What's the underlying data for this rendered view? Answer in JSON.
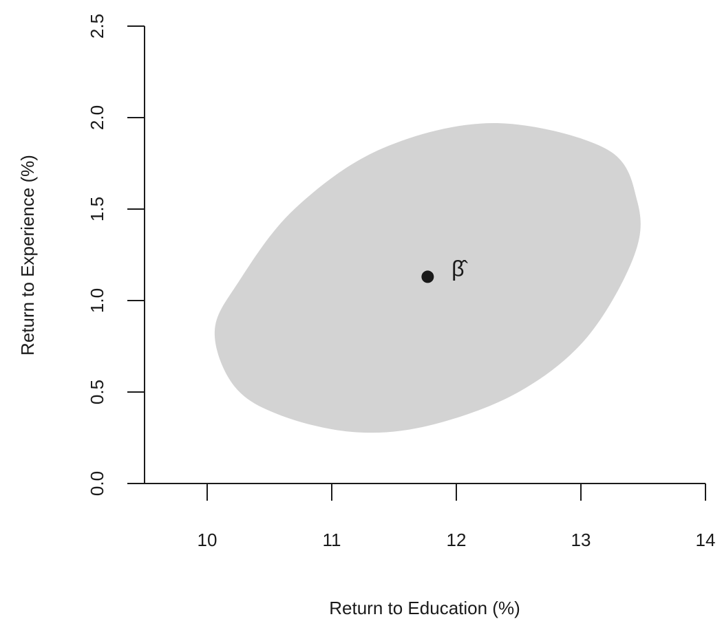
{
  "chart_data": {
    "type": "scatter",
    "title": "",
    "xlabel": "Return to Education (%)",
    "ylabel": "Return to Experience (%)",
    "xlim": [
      9.5,
      14
    ],
    "ylim": [
      0,
      2.5
    ],
    "x_ticks": [
      10,
      11,
      12,
      13,
      14
    ],
    "x_tick_labels": [
      "10",
      "11",
      "12",
      "13",
      "14"
    ],
    "y_ticks": [
      0,
      0.5,
      1,
      1.5,
      2,
      2.5
    ],
    "y_tick_labels": [
      "0.0",
      "0.5",
      "1.0",
      "1.5",
      "2.0",
      "2.5"
    ],
    "grid": false,
    "point": {
      "x": 11.77,
      "y": 1.13,
      "label": "β̂"
    },
    "confidence_ellipse": {
      "center_x": 11.77,
      "center_y": 1.13,
      "boundary": [
        [
          12.3,
          1.97
        ],
        [
          13.2,
          1.83
        ],
        [
          13.45,
          1.55
        ],
        [
          13.43,
          1.25
        ],
        [
          13.05,
          0.8
        ],
        [
          12.5,
          0.5
        ],
        [
          11.8,
          0.32
        ],
        [
          11.2,
          0.28
        ],
        [
          10.6,
          0.37
        ],
        [
          10.22,
          0.53
        ],
        [
          10.06,
          0.83
        ],
        [
          10.25,
          1.1
        ],
        [
          10.7,
          1.5
        ],
        [
          11.4,
          1.83
        ]
      ],
      "fill": "#d3d3d3"
    },
    "colors": {
      "region": "#d3d3d3",
      "point": "#1a1a1a",
      "axis": "#1a1a1a"
    }
  }
}
